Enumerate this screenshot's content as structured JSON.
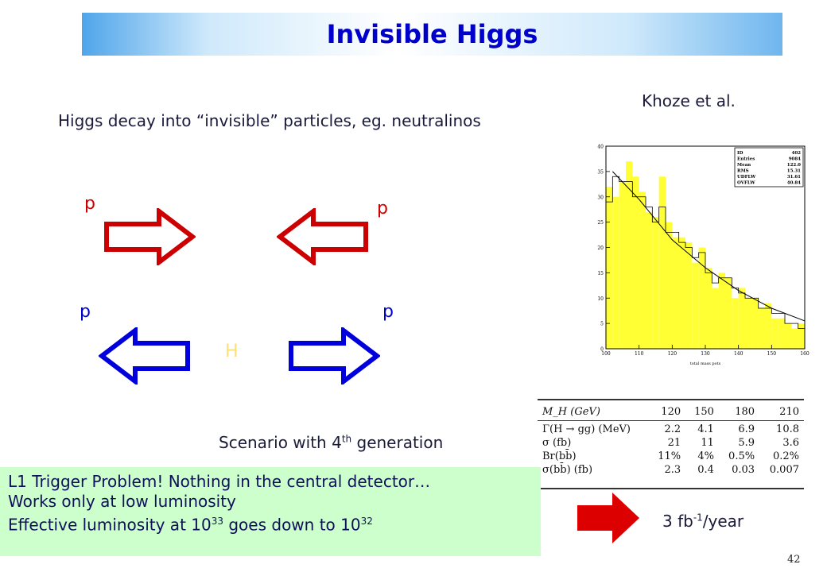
{
  "slide": {
    "title": "Invisible Higgs",
    "credit": "Khoze et al.",
    "subtitle": "Higgs decay into “invisible” particles, eg. neutralinos",
    "particles": {
      "p_top_left": "p",
      "p_top_right": "p",
      "p_bottom_left": "p",
      "p_bottom_right": "p",
      "higgs": "H"
    },
    "scenario": {
      "text": "Scenario with 4",
      "sup": "th",
      "rest": " generation"
    },
    "info_lines": [
      "L1 Trigger Problem! Nothing in the central detector…",
      "Works only at low luminosity",
      "Effective luminosity at 10"
    ],
    "info_line3": {
      "base": "Effective luminosity at 10",
      "exp1": "33",
      "mid": " goes down to 10",
      "exp2": "32"
    },
    "rate": {
      "prefix": "3 fb",
      "exp": "-1",
      "suffix": "/year"
    },
    "page_number": "42"
  },
  "table": {
    "header": [
      "M_H (GeV)",
      "120",
      "150",
      "180",
      "210"
    ],
    "rows": [
      [
        "Γ(H → gg) (MeV)",
        "2.2",
        "4.1",
        "6.9",
        "10.8"
      ],
      [
        "σ (fb)",
        "21",
        "11",
        "5.9",
        "3.6"
      ],
      [
        "Br(bb̄)",
        "11%",
        "4%",
        "0.5%",
        "0.2%"
      ],
      [
        "σ(bb̄) (fb)",
        "2.3",
        "0.4",
        "0.03",
        "0.007"
      ]
    ]
  },
  "chart_data": {
    "type": "bar",
    "xlabel": "total mass pots",
    "xlim": [
      100,
      160
    ],
    "ylim": [
      0,
      40
    ],
    "xticks": [
      100,
      110,
      120,
      130,
      140,
      150,
      160
    ],
    "yticks": [
      0,
      5,
      10,
      15,
      20,
      25,
      30,
      35,
      40
    ],
    "stats": [
      [
        "ID",
        "402"
      ],
      [
        "Entries",
        "9084"
      ],
      [
        "Mean",
        "122.0"
      ],
      [
        "RMS",
        "15.31"
      ],
      [
        "UDFLW",
        "31.61"
      ],
      [
        "OVFLW",
        "40.84"
      ]
    ],
    "bin_width": 2,
    "bin_starts": [
      100,
      102,
      104,
      106,
      108,
      110,
      112,
      114,
      116,
      118,
      120,
      122,
      124,
      126,
      128,
      130,
      132,
      134,
      136,
      138,
      140,
      142,
      144,
      146,
      148,
      150,
      152,
      154,
      156,
      158
    ],
    "values": [
      32,
      30,
      33,
      37,
      34,
      31,
      27,
      26,
      34,
      25,
      22,
      22,
      21,
      17,
      20,
      16,
      12,
      15,
      14,
      10,
      12,
      10,
      10,
      8,
      9,
      6,
      6,
      5,
      4,
      5
    ],
    "overlay_values": [
      29,
      34,
      33,
      33,
      30,
      30,
      28,
      25,
      28,
      23,
      23,
      21,
      20,
      18,
      19,
      15,
      13,
      14,
      14,
      12,
      11,
      10,
      10,
      8,
      8,
      7,
      7,
      5,
      5,
      4
    ],
    "fit_curve": {
      "x": [
        102,
        110,
        120,
        130,
        140,
        150,
        160
      ],
      "y": [
        35,
        29.5,
        21.5,
        16,
        11.5,
        8,
        5.5
      ]
    },
    "fill_color": "#ffff33",
    "curve_color": "#000000"
  }
}
